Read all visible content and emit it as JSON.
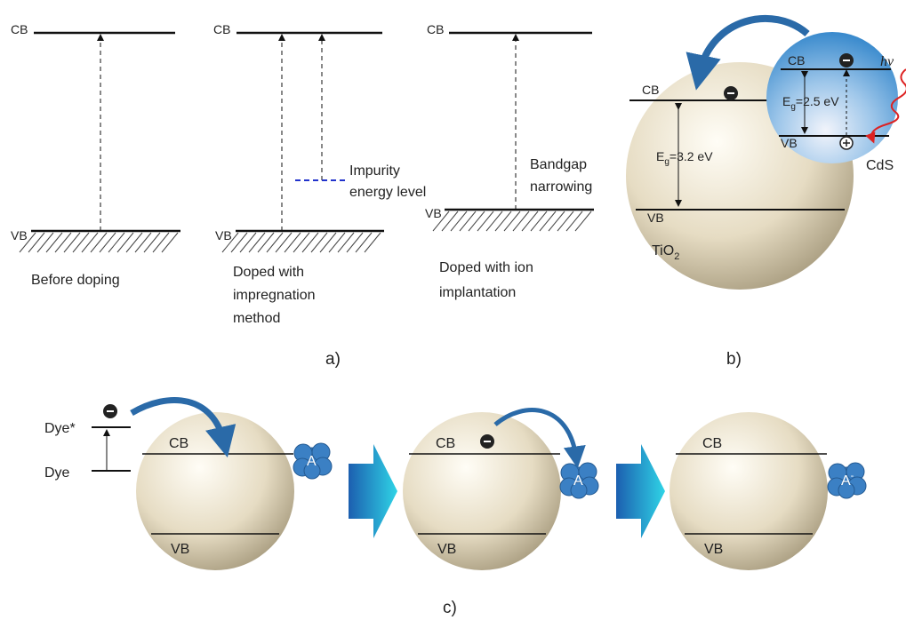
{
  "panel_a": {
    "label": "a)",
    "diagrams": [
      {
        "cb": "CB",
        "vb": "VB",
        "caption": [
          "Before doping"
        ]
      },
      {
        "cb": "CB",
        "vb": "VB",
        "caption": [
          "Doped with",
          "impregnation",
          "method"
        ],
        "annotation": [
          "Impurity",
          "energy level"
        ]
      },
      {
        "cb": "CB",
        "vb": "VB",
        "caption": [
          "Doped with ion",
          "implantation"
        ],
        "annotation": [
          "Bandgap",
          "narrowing"
        ]
      }
    ]
  },
  "panel_b": {
    "label": "b)",
    "tio2": {
      "cb": "CB",
      "vb": "VB",
      "gap": {
        "symbol": "E",
        "subscript": "g",
        "value": "=3.2 eV"
      },
      "name": {
        "text": "TiO",
        "subscript": "2"
      }
    },
    "cds": {
      "cb": "CB",
      "vb": "VB",
      "gap": {
        "symbol": "E",
        "subscript": "g",
        "value": "=2.5 eV"
      },
      "name": "CdS",
      "light": "hv"
    }
  },
  "panel_c": {
    "label": "c)",
    "dye_excited": "Dye*",
    "dye": "Dye",
    "steps": [
      {
        "cb": "CB",
        "vb": "VB",
        "acceptor": {
          "text": "A"
        }
      },
      {
        "cb": "CB",
        "vb": "VB",
        "acceptor": {
          "text": "A"
        }
      },
      {
        "cb": "CB",
        "vb": "VB",
        "acceptor": {
          "text": "A",
          "superscript": "-"
        }
      }
    ]
  }
}
